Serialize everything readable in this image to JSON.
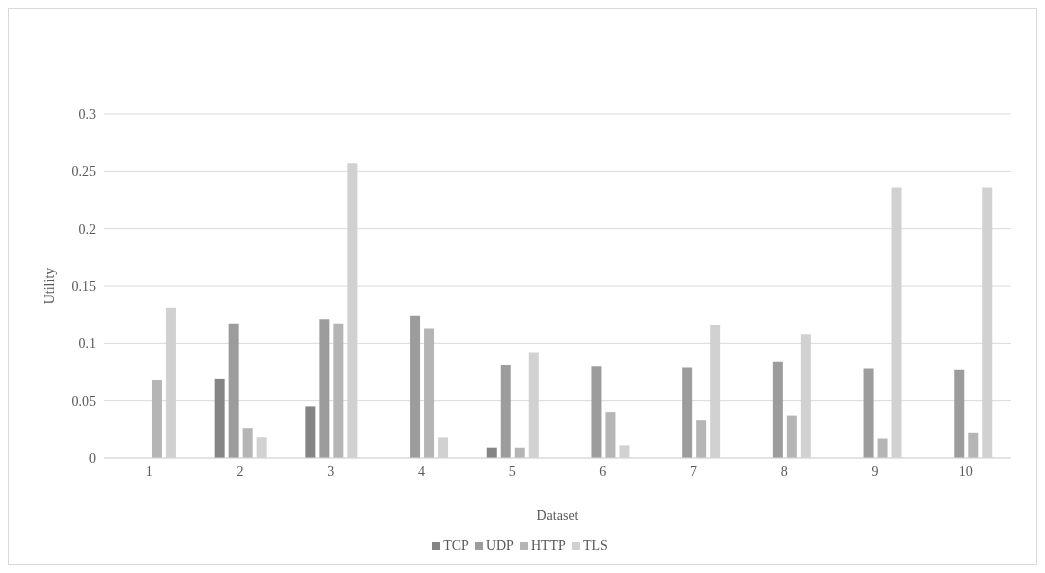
{
  "chart_data": {
    "type": "bar",
    "xlabel": "Dataset",
    "ylabel": "Utility",
    "categories": [
      "1",
      "2",
      "3",
      "4",
      "5",
      "6",
      "7",
      "8",
      "9",
      "10"
    ],
    "series": [
      {
        "name": "TCP",
        "color": "#858585",
        "values": [
          0,
          0.069,
          0.045,
          0,
          0.009,
          0,
          0,
          0,
          0,
          0
        ]
      },
      {
        "name": "UDP",
        "color": "#9c9c9c",
        "values": [
          0,
          0.117,
          0.121,
          0.124,
          0.081,
          0.08,
          0.079,
          0.084,
          0.078,
          0.077
        ]
      },
      {
        "name": "HTTP",
        "color": "#b5b5b5",
        "values": [
          0.068,
          0.026,
          0.117,
          0.113,
          0.009,
          0.04,
          0.033,
          0.037,
          0.017,
          0.022
        ]
      },
      {
        "name": "TLS",
        "color": "#d1d1d1",
        "values": [
          0.131,
          0.018,
          0.257,
          0.018,
          0.092,
          0.011,
          0.116,
          0.108,
          0.236,
          0.236
        ]
      }
    ],
    "ylim": [
      0,
      0.3
    ],
    "yticks": [
      0,
      0.05,
      0.1,
      0.15,
      0.2,
      0.25,
      0.3
    ],
    "grid": "y",
    "legend": "bottom"
  }
}
